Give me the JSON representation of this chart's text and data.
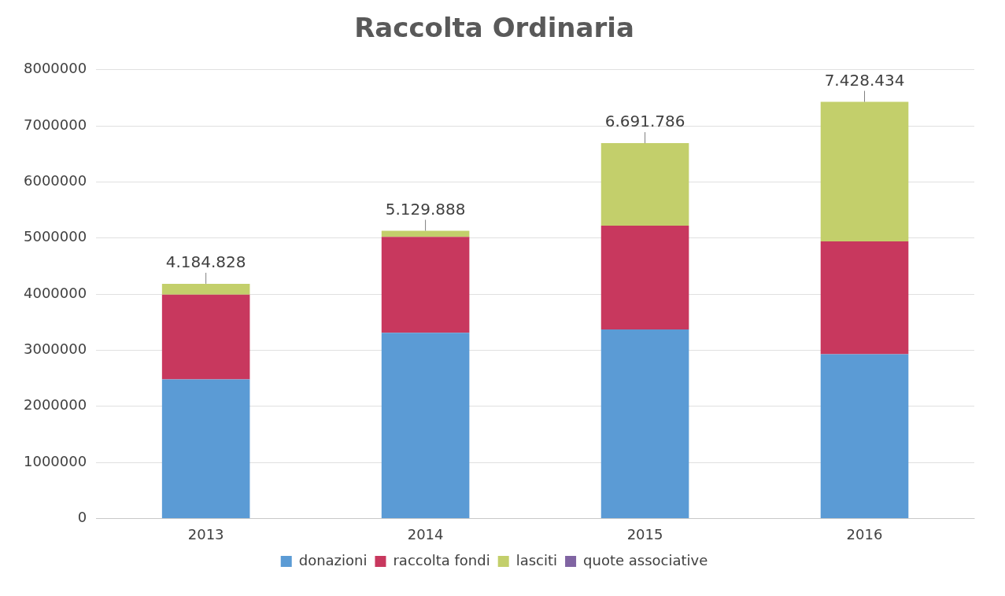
{
  "chart_data": {
    "type": "bar",
    "title": "Raccolta Ordinaria",
    "categories": [
      "2013",
      "2014",
      "2015",
      "2016"
    ],
    "stacked": true,
    "series": [
      {
        "name": "donazioni",
        "color": "#5b9bd5",
        "values": [
          2480000,
          3310000,
          3370000,
          2930000
        ]
      },
      {
        "name": "raccolta fondi",
        "color": "#c8385e",
        "values": [
          1510000,
          1710000,
          1850000,
          2010000
        ]
      },
      {
        "name": "lasciti",
        "color": "#c3cf6b",
        "values": [
          194828,
          109888,
          1471786,
          2488434
        ]
      },
      {
        "name": "quote associative",
        "color": "#8064a2",
        "values": [
          null,
          null,
          null,
          null
        ]
      }
    ],
    "totals": [
      "4.184.828",
      "5.129.888",
      "6.691.786",
      "7.428.434"
    ],
    "ylim": [
      0,
      8000000
    ],
    "yticks": [
      0,
      1000000,
      2000000,
      3000000,
      4000000,
      5000000,
      6000000,
      7000000,
      8000000
    ],
    "grid": "y",
    "legend": "bottom"
  }
}
